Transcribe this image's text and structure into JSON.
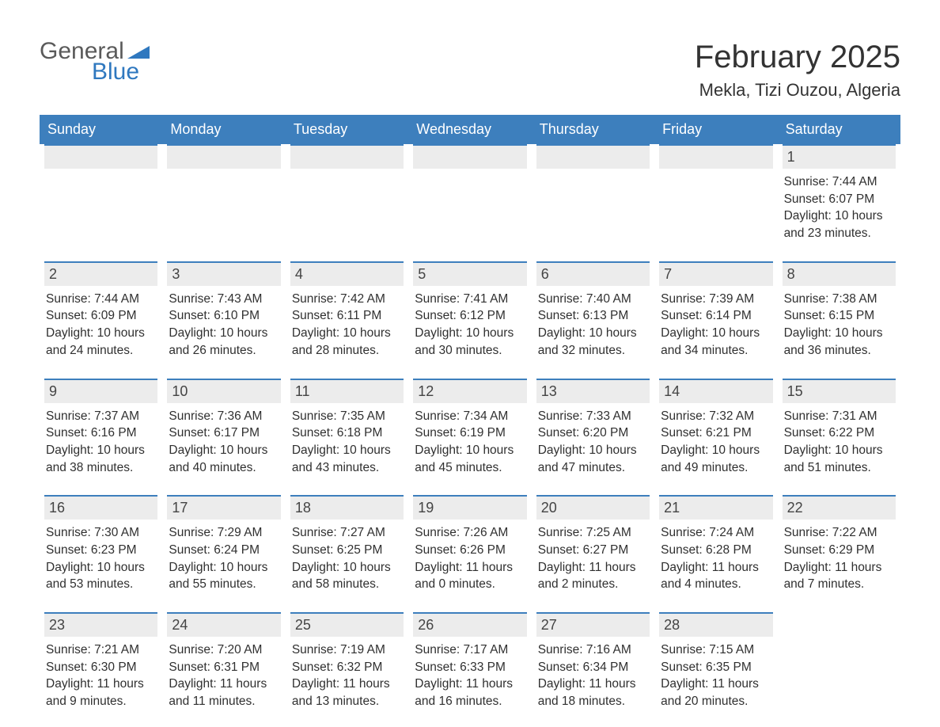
{
  "logo": {
    "part1": "General",
    "part2": "Blue",
    "tri_color": "#2f78bf"
  },
  "title": "February 2025",
  "location": "Mekla, Tizi Ouzou, Algeria",
  "colors": {
    "header_bg": "#3d7fbd",
    "header_text": "#ffffff",
    "row_bg": "#ececec",
    "row_border": "#3d7fbd",
    "text": "#333333",
    "logo_gray": "#5a5a5a",
    "logo_blue": "#2f78bf",
    "page_bg": "#ffffff"
  },
  "typography": {
    "title_fontsize": 40,
    "location_fontsize": 22,
    "dow_fontsize": 18,
    "daynum_fontsize": 18,
    "body_fontsize": 15.5,
    "logo_fontsize": 30
  },
  "layout": {
    "columns": 7,
    "rows": 5
  },
  "days_of_week": [
    "Sunday",
    "Monday",
    "Tuesday",
    "Wednesday",
    "Thursday",
    "Friday",
    "Saturday"
  ],
  "labels": {
    "sunrise": "Sunrise:",
    "sunset": "Sunset:",
    "daylight": "Daylight:"
  },
  "weeks": [
    [
      {
        "empty": true
      },
      {
        "empty": true
      },
      {
        "empty": true
      },
      {
        "empty": true
      },
      {
        "empty": true
      },
      {
        "empty": true
      },
      {
        "num": "1",
        "sunrise": "7:44 AM",
        "sunset": "6:07 PM",
        "daylight": "10 hours and 23 minutes."
      }
    ],
    [
      {
        "num": "2",
        "sunrise": "7:44 AM",
        "sunset": "6:09 PM",
        "daylight": "10 hours and 24 minutes."
      },
      {
        "num": "3",
        "sunrise": "7:43 AM",
        "sunset": "6:10 PM",
        "daylight": "10 hours and 26 minutes."
      },
      {
        "num": "4",
        "sunrise": "7:42 AM",
        "sunset": "6:11 PM",
        "daylight": "10 hours and 28 minutes."
      },
      {
        "num": "5",
        "sunrise": "7:41 AM",
        "sunset": "6:12 PM",
        "daylight": "10 hours and 30 minutes."
      },
      {
        "num": "6",
        "sunrise": "7:40 AM",
        "sunset": "6:13 PM",
        "daylight": "10 hours and 32 minutes."
      },
      {
        "num": "7",
        "sunrise": "7:39 AM",
        "sunset": "6:14 PM",
        "daylight": "10 hours and 34 minutes."
      },
      {
        "num": "8",
        "sunrise": "7:38 AM",
        "sunset": "6:15 PM",
        "daylight": "10 hours and 36 minutes."
      }
    ],
    [
      {
        "num": "9",
        "sunrise": "7:37 AM",
        "sunset": "6:16 PM",
        "daylight": "10 hours and 38 minutes."
      },
      {
        "num": "10",
        "sunrise": "7:36 AM",
        "sunset": "6:17 PM",
        "daylight": "10 hours and 40 minutes."
      },
      {
        "num": "11",
        "sunrise": "7:35 AM",
        "sunset": "6:18 PM",
        "daylight": "10 hours and 43 minutes."
      },
      {
        "num": "12",
        "sunrise": "7:34 AM",
        "sunset": "6:19 PM",
        "daylight": "10 hours and 45 minutes."
      },
      {
        "num": "13",
        "sunrise": "7:33 AM",
        "sunset": "6:20 PM",
        "daylight": "10 hours and 47 minutes."
      },
      {
        "num": "14",
        "sunrise": "7:32 AM",
        "sunset": "6:21 PM",
        "daylight": "10 hours and 49 minutes."
      },
      {
        "num": "15",
        "sunrise": "7:31 AM",
        "sunset": "6:22 PM",
        "daylight": "10 hours and 51 minutes."
      }
    ],
    [
      {
        "num": "16",
        "sunrise": "7:30 AM",
        "sunset": "6:23 PM",
        "daylight": "10 hours and 53 minutes."
      },
      {
        "num": "17",
        "sunrise": "7:29 AM",
        "sunset": "6:24 PM",
        "daylight": "10 hours and 55 minutes."
      },
      {
        "num": "18",
        "sunrise": "7:27 AM",
        "sunset": "6:25 PM",
        "daylight": "10 hours and 58 minutes."
      },
      {
        "num": "19",
        "sunrise": "7:26 AM",
        "sunset": "6:26 PM",
        "daylight": "11 hours and 0 minutes."
      },
      {
        "num": "20",
        "sunrise": "7:25 AM",
        "sunset": "6:27 PM",
        "daylight": "11 hours and 2 minutes."
      },
      {
        "num": "21",
        "sunrise": "7:24 AM",
        "sunset": "6:28 PM",
        "daylight": "11 hours and 4 minutes."
      },
      {
        "num": "22",
        "sunrise": "7:22 AM",
        "sunset": "6:29 PM",
        "daylight": "11 hours and 7 minutes."
      }
    ],
    [
      {
        "num": "23",
        "sunrise": "7:21 AM",
        "sunset": "6:30 PM",
        "daylight": "11 hours and 9 minutes."
      },
      {
        "num": "24",
        "sunrise": "7:20 AM",
        "sunset": "6:31 PM",
        "daylight": "11 hours and 11 minutes."
      },
      {
        "num": "25",
        "sunrise": "7:19 AM",
        "sunset": "6:32 PM",
        "daylight": "11 hours and 13 minutes."
      },
      {
        "num": "26",
        "sunrise": "7:17 AM",
        "sunset": "6:33 PM",
        "daylight": "11 hours and 16 minutes."
      },
      {
        "num": "27",
        "sunrise": "7:16 AM",
        "sunset": "6:34 PM",
        "daylight": "11 hours and 18 minutes."
      },
      {
        "num": "28",
        "sunrise": "7:15 AM",
        "sunset": "6:35 PM",
        "daylight": "11 hours and 20 minutes."
      },
      {
        "blank": true
      }
    ]
  ]
}
